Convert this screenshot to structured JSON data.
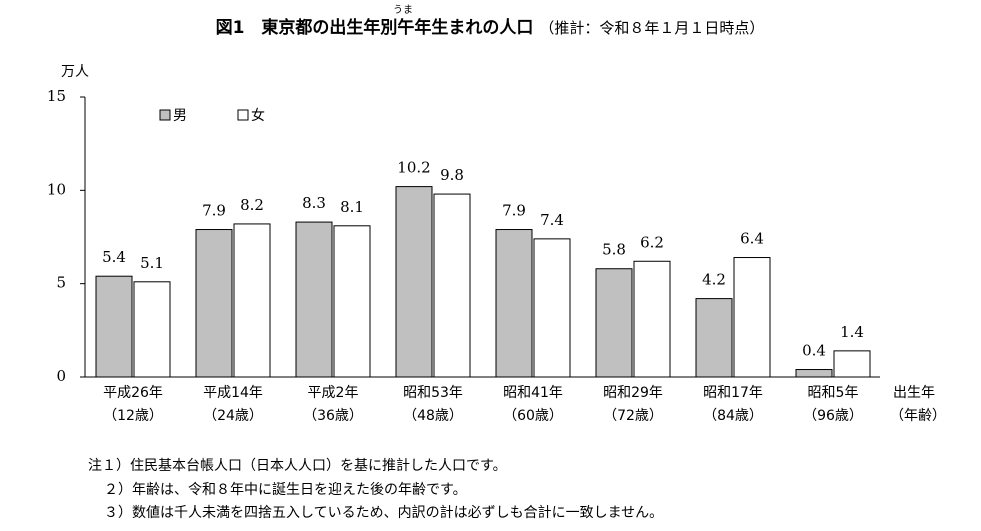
{
  "chart_data": {
    "type": "bar",
    "title": "図1　東京都の出生年別午年生まれの人口",
    "title_ruby": "うま",
    "subtitle": "（推計：令和８年１月１日時点）",
    "ylabel": "万人",
    "xlabel": "出生年",
    "xlabel_sub": "（年齢）",
    "categories": [
      "平成26年",
      "平成14年",
      "平成2年",
      "昭和53年",
      "昭和41年",
      "昭和29年",
      "昭和17年",
      "昭和5年"
    ],
    "category_sublabels": [
      "（12歳）",
      "（24歳）",
      "（36歳）",
      "（48歳）",
      "（60歳）",
      "（72歳）",
      "（84歳）",
      "（96歳）"
    ],
    "series": [
      {
        "name": "男",
        "color": "#c0c0c0",
        "values": [
          5.4,
          7.9,
          8.3,
          10.2,
          7.9,
          5.8,
          4.2,
          0.4
        ]
      },
      {
        "name": "女",
        "color": "#ffffff",
        "values": [
          5.1,
          8.2,
          8.1,
          9.8,
          7.4,
          6.2,
          6.4,
          1.4
        ]
      }
    ],
    "ylim": [
      0,
      15
    ],
    "yticks": [
      0,
      5,
      10,
      15
    ],
    "grid": false,
    "legend": "top-left",
    "notes": [
      "注１）住民基本台帳人口（日本人人口）を基に推計した人口です。",
      "２）年齢は、令和８年中に誕生日を迎えた後の年齢です。",
      "３）数値は千人未満を四捨五入しているため、内訳の計は必ずしも合計に一致しません。"
    ]
  }
}
